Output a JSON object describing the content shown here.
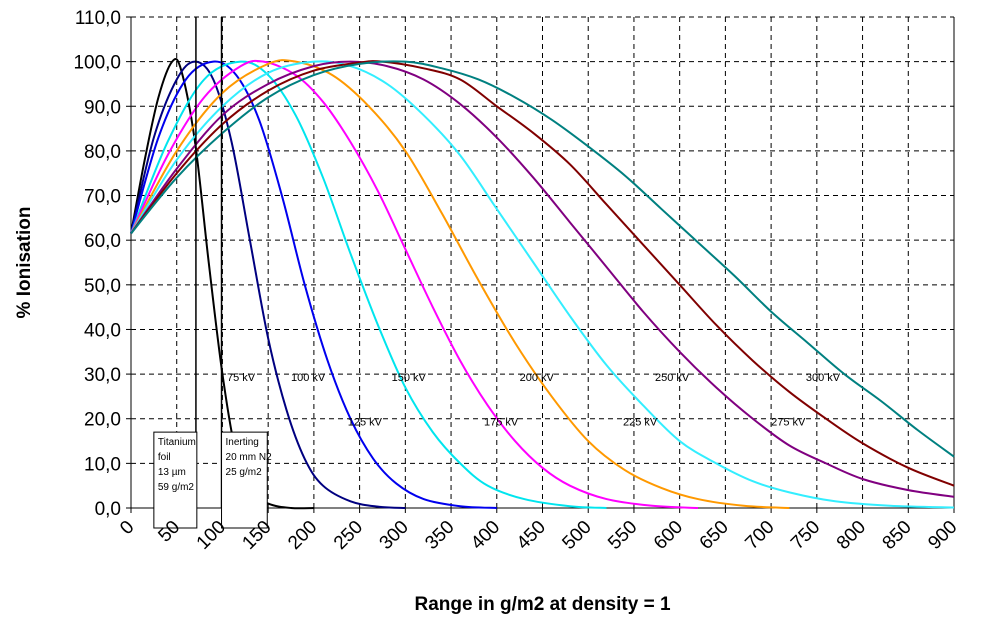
{
  "chart_data": {
    "type": "line",
    "xlabel": "Range in g/m2 at density = 1",
    "ylabel": "% Ionisation",
    "xlim": [
      0,
      900
    ],
    "ylim": [
      0,
      110
    ],
    "grid": true,
    "x_ticks": [
      "0",
      "50",
      "100",
      "150",
      "200",
      "250",
      "300",
      "350",
      "400",
      "450",
      "500",
      "550",
      "600",
      "650",
      "700",
      "750",
      "800",
      "850",
      "900"
    ],
    "y_ticks": [
      "0,0",
      "10,0",
      "20,0",
      "30,0",
      "40,0",
      "50,0",
      "60,0",
      "70,0",
      "80,0",
      "90,0",
      "100,0",
      "110,0"
    ],
    "series": [
      {
        "name": "75 kV",
        "color": "#000000",
        "label_at": [
          105,
          28.5
        ],
        "points": [
          [
            0,
            61.5
          ],
          [
            15,
            78
          ],
          [
            30,
            92
          ],
          [
            45,
            100
          ],
          [
            55,
            98
          ],
          [
            70,
            82
          ],
          [
            85,
            55
          ],
          [
            100,
            30
          ],
          [
            115,
            12
          ],
          [
            130,
            4
          ],
          [
            150,
            1
          ],
          [
            175,
            0
          ],
          [
            200,
            0
          ]
        ]
      },
      {
        "name": "100 kV",
        "color": "#000080",
        "label_at": [
          175,
          28.5
        ],
        "points": [
          [
            0,
            61.5
          ],
          [
            25,
            83
          ],
          [
            50,
            96
          ],
          [
            70,
            100
          ],
          [
            90,
            96
          ],
          [
            110,
            82
          ],
          [
            130,
            60
          ],
          [
            150,
            38
          ],
          [
            170,
            22
          ],
          [
            190,
            11
          ],
          [
            210,
            5
          ],
          [
            240,
            1.5
          ],
          [
            270,
            0.3
          ],
          [
            300,
            0
          ]
        ]
      },
      {
        "name": "125 kV",
        "color": "#0000EE",
        "label_at": [
          237,
          18.5
        ],
        "points": [
          [
            0,
            61.5
          ],
          [
            30,
            83
          ],
          [
            60,
            96
          ],
          [
            90,
            100
          ],
          [
            115,
            97
          ],
          [
            140,
            87
          ],
          [
            165,
            70
          ],
          [
            190,
            50
          ],
          [
            215,
            33
          ],
          [
            240,
            20
          ],
          [
            265,
            11
          ],
          [
            290,
            5.5
          ],
          [
            320,
            2
          ],
          [
            360,
            0.4
          ],
          [
            400,
            0
          ]
        ]
      },
      {
        "name": "150 kV",
        "color": "#00E5EE",
        "label_at": [
          285,
          28.5
        ],
        "points": [
          [
            0,
            61.5
          ],
          [
            40,
            82
          ],
          [
            80,
            96
          ],
          [
            120,
            100
          ],
          [
            150,
            97
          ],
          [
            180,
            88
          ],
          [
            210,
            74
          ],
          [
            240,
            57
          ],
          [
            270,
            41
          ],
          [
            300,
            27
          ],
          [
            330,
            17
          ],
          [
            360,
            10
          ],
          [
            390,
            5
          ],
          [
            430,
            2
          ],
          [
            480,
            0.4
          ],
          [
            520,
            0
          ]
        ]
      },
      {
        "name": "175 kV",
        "color": "#FF00FF",
        "label_at": [
          386,
          18.5
        ],
        "points": [
          [
            0,
            61.5
          ],
          [
            40,
            79
          ],
          [
            80,
            92
          ],
          [
            120,
            99
          ],
          [
            145,
            100
          ],
          [
            180,
            97
          ],
          [
            210,
            91
          ],
          [
            240,
            82
          ],
          [
            270,
            71
          ],
          [
            300,
            58
          ],
          [
            330,
            45
          ],
          [
            360,
            33
          ],
          [
            390,
            23
          ],
          [
            420,
            15
          ],
          [
            450,
            9
          ],
          [
            480,
            5
          ],
          [
            520,
            2
          ],
          [
            570,
            0.5
          ],
          [
            620,
            0
          ]
        ]
      },
      {
        "name": "200 kV",
        "color": "#FF9900",
        "label_at": [
          425,
          28.5
        ],
        "points": [
          [
            0,
            61.5
          ],
          [
            50,
            80
          ],
          [
            100,
            93
          ],
          [
            150,
            99.5
          ],
          [
            180,
            100
          ],
          [
            220,
            97
          ],
          [
            260,
            90
          ],
          [
            300,
            80
          ],
          [
            340,
            66
          ],
          [
            380,
            51
          ],
          [
            420,
            37
          ],
          [
            460,
            25
          ],
          [
            500,
            15
          ],
          [
            540,
            8.5
          ],
          [
            580,
            4.5
          ],
          [
            620,
            2
          ],
          [
            670,
            0.5
          ],
          [
            720,
            0
          ]
        ]
      },
      {
        "name": "225 kV",
        "color": "#33EEFF",
        "label_at": [
          538,
          18.5
        ],
        "points": [
          [
            0,
            61.5
          ],
          [
            50,
            78
          ],
          [
            100,
            90
          ],
          [
            150,
            97.5
          ],
          [
            200,
            100
          ],
          [
            240,
            99
          ],
          [
            280,
            95
          ],
          [
            320,
            88
          ],
          [
            360,
            79
          ],
          [
            400,
            67
          ],
          [
            440,
            55
          ],
          [
            480,
            43
          ],
          [
            520,
            32
          ],
          [
            560,
            23
          ],
          [
            600,
            15
          ],
          [
            640,
            10
          ],
          [
            680,
            6
          ],
          [
            720,
            3.5
          ],
          [
            770,
            1.5
          ],
          [
            830,
            0.5
          ],
          [
            900,
            0.1
          ]
        ]
      },
      {
        "name": "250 kV",
        "color": "#800080",
        "label_at": [
          573,
          28.5
        ],
        "points": [
          [
            0,
            61.5
          ],
          [
            50,
            76
          ],
          [
            100,
            88
          ],
          [
            150,
            95
          ],
          [
            200,
            99
          ],
          [
            240,
            100
          ],
          [
            280,
            99
          ],
          [
            320,
            96
          ],
          [
            360,
            90.5
          ],
          [
            400,
            83
          ],
          [
            440,
            74
          ],
          [
            480,
            64
          ],
          [
            520,
            54
          ],
          [
            560,
            44
          ],
          [
            600,
            35
          ],
          [
            640,
            27
          ],
          [
            680,
            20
          ],
          [
            720,
            14
          ],
          [
            760,
            10
          ],
          [
            800,
            6.5
          ],
          [
            850,
            4
          ],
          [
            900,
            2.5
          ]
        ]
      },
      {
        "name": "275 kV",
        "color": "#800000",
        "label_at": [
          700,
          18.5
        ],
        "points": [
          [
            0,
            61.5
          ],
          [
            50,
            75
          ],
          [
            100,
            86
          ],
          [
            150,
            93.5
          ],
          [
            200,
            98
          ],
          [
            250,
            99.8
          ],
          [
            275,
            100
          ],
          [
            320,
            98.5
          ],
          [
            360,
            96
          ],
          [
            400,
            90
          ],
          [
            440,
            84
          ],
          [
            480,
            77
          ],
          [
            520,
            68
          ],
          [
            560,
            59
          ],
          [
            600,
            50
          ],
          [
            640,
            41
          ],
          [
            680,
            33
          ],
          [
            720,
            26
          ],
          [
            760,
            20
          ],
          [
            800,
            14.5
          ],
          [
            850,
            9
          ],
          [
            900,
            5
          ]
        ]
      },
      {
        "name": "300 kV",
        "color": "#008080",
        "label_at": [
          738,
          28.5
        ],
        "points": [
          [
            0,
            61.5
          ],
          [
            50,
            74
          ],
          [
            100,
            84
          ],
          [
            150,
            92
          ],
          [
            200,
            97
          ],
          [
            250,
            99.5
          ],
          [
            300,
            100
          ],
          [
            340,
            98.5
          ],
          [
            380,
            96
          ],
          [
            420,
            92
          ],
          [
            460,
            87
          ],
          [
            500,
            81
          ],
          [
            540,
            74.5
          ],
          [
            580,
            67
          ],
          [
            620,
            59.5
          ],
          [
            660,
            52
          ],
          [
            700,
            44
          ],
          [
            740,
            37
          ],
          [
            780,
            30
          ],
          [
            820,
            24
          ],
          [
            860,
            17.5
          ],
          [
            900,
            11.5
          ]
        ]
      }
    ],
    "vertical_lines": [
      71,
      99
    ],
    "annotation_boxes": [
      {
        "lines": [
          "Titanium",
          "foil",
          "13 µm",
          "59 g/m2"
        ],
        "x_range": [
          25,
          72
        ],
        "y_range": [
          0,
          17
        ]
      },
      {
        "lines": [
          "Inerting",
          "20 mm N2",
          "25 g/m2"
        ],
        "x_range": [
          99,
          149
        ],
        "y_range": [
          0,
          17
        ]
      }
    ]
  }
}
